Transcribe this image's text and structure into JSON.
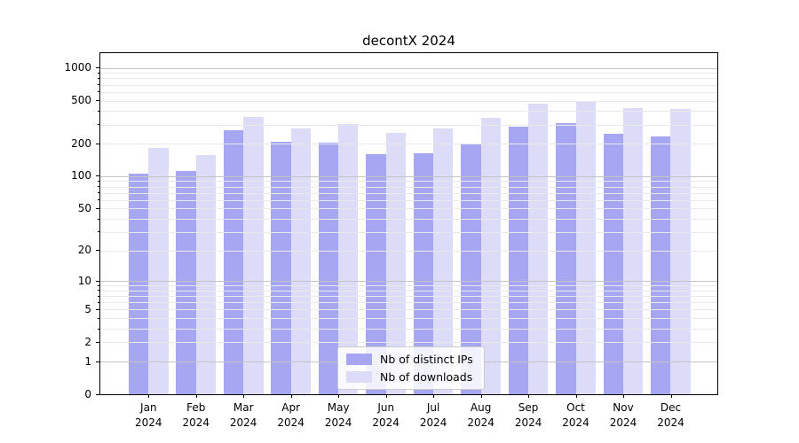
{
  "chart_data": {
    "type": "bar",
    "title": "decontX 2024",
    "categories": [
      "Jan",
      "Feb",
      "Mar",
      "Apr",
      "May",
      "Jun",
      "Jul",
      "Aug",
      "Sep",
      "Oct",
      "Nov",
      "Dec"
    ],
    "year_label": "2024",
    "series": [
      {
        "name": "Nb of distinct IPs",
        "color": "#a6a6f2",
        "values": [
          105,
          112,
          265,
          209,
          203,
          160,
          163,
          199,
          286,
          308,
          248,
          234
        ]
      },
      {
        "name": "Nb of downloads",
        "color": "#dcdcf8",
        "values": [
          182,
          158,
          350,
          278,
          306,
          253,
          277,
          348,
          465,
          496,
          429,
          416
        ]
      }
    ],
    "yticks": [
      0,
      1,
      2,
      5,
      10,
      20,
      50,
      100,
      200,
      500,
      1000
    ],
    "yscale": "log10(value+1)",
    "ylim": [
      0,
      1364
    ],
    "grid": "horizontal",
    "legend_position": "bottom-center-inside"
  },
  "colors": {
    "background": "#ffffff",
    "axis": "#000000",
    "grid_major": "#c3c3c3",
    "grid_minor": "#e9e9e9",
    "legend_border": "#cccccc"
  }
}
